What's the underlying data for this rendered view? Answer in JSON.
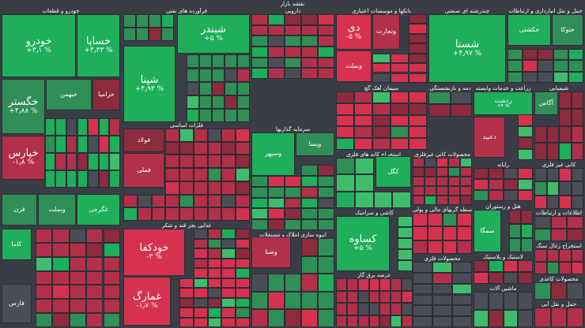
{
  "title": "نقشه بازار",
  "colors": {
    "background": "#3a3d45",
    "strong_green": "#1fae5a",
    "green": "#2f8f56",
    "light_green": "#3fbd6c",
    "neutral": "#4a4d55",
    "red": "#b2304a",
    "strong_red": "#d6324f",
    "dark_red": "#8c2a3e"
  },
  "sectors": [
    {
      "label": "خودرو و قطعات"
    },
    {
      "label": "فرآورده های نفتی"
    },
    {
      "label": "دارویی"
    },
    {
      "label": "بانکها و موسسات اعتباری"
    },
    {
      "label": "چندرشته ای صنعتی"
    },
    {
      "label": "حمل و نقل انبارداری و ارتباطات"
    },
    {
      "label": "فلزات اساسی"
    },
    {
      "label": "سیمان آهک گچ"
    },
    {
      "label": "دمه و بازنشستگی"
    },
    {
      "label": "زراعت و خدمات وابسته"
    },
    {
      "label": "شیمیایی"
    },
    {
      "label": "سرمایه گذاریها"
    },
    {
      "label": "استخراج کانه های فلزی"
    },
    {
      "label": "محصولات کانی غیرفلزی"
    },
    {
      "label": "کانی غیر فلزی"
    },
    {
      "label": "رایانه"
    },
    {
      "label": "عرضه برق گاز"
    },
    {
      "label": "کاشی و سرامیک"
    },
    {
      "label": "واسطه گریهای مالی و پولی"
    },
    {
      "label": "هتل و رستوران"
    },
    {
      "label": "اطلاعات و ارتباطات"
    },
    {
      "label": "غذایی بجز قند و شکر"
    },
    {
      "label": "انبوه سازی املاک و مستغلات"
    },
    {
      "label": "محصولات فلزی"
    },
    {
      "label": "لاستیک و پلاستیک"
    },
    {
      "label": "استخراج زغال سنگ"
    },
    {
      "label": "ماشین آلات"
    },
    {
      "label": "محصولات کاغذی"
    },
    {
      "label": "حمل و نقل آبی"
    }
  ],
  "tiles": [
    {
      "label": "خودرو",
      "value": "+۳٫۱ %"
    },
    {
      "label": "خساپا",
      "value": "+۴٫۳۳ %"
    },
    {
      "label": "شبندر",
      "value": "+۵ %"
    },
    {
      "label": "شپنا",
      "value": "+۴٫۹۳ %"
    },
    {
      "label": "دی",
      "value": "-۵ %"
    },
    {
      "label": "وتجارت",
      "value": ""
    },
    {
      "label": "وبملت",
      "value": ""
    },
    {
      "label": "شستا",
      "value": "+۴٫۹۷ %"
    },
    {
      "label": "حکشتی",
      "value": ""
    },
    {
      "label": "حتوکا",
      "value": ""
    },
    {
      "label": "خگستر",
      "value": "+۴٫۸۸ %"
    },
    {
      "label": "خبهمن",
      "value": ""
    },
    {
      "label": "خزامیا",
      "value": ""
    },
    {
      "label": "خپارس",
      "value": "-۱٫۸ %"
    },
    {
      "label": "فولاد",
      "value": ""
    },
    {
      "label": "فملی",
      "value": ""
    },
    {
      "label": "کگل",
      "value": ""
    },
    {
      "label": "وسپهر",
      "value": ""
    },
    {
      "label": "ویسا",
      "value": ""
    },
    {
      "label": "کساوه",
      "value": "+۵ %"
    },
    {
      "label": "سمگا",
      "value": ""
    },
    {
      "label": "خودکفا",
      "value": "-۳ %"
    },
    {
      "label": "غمارگ",
      "value": "-۱٫۷ %"
    },
    {
      "label": "قرن",
      "value": ""
    },
    {
      "label": "غگرجی",
      "value": ""
    },
    {
      "label": "وبملت",
      "value": ""
    },
    {
      "label": "وصنا",
      "value": ""
    },
    {
      "label": "فارس",
      "value": ""
    },
    {
      "label": "کاما",
      "value": ""
    },
    {
      "label": "زدشت",
      "value": "+۴ %"
    },
    {
      "label": "آگاس",
      "value": ""
    },
    {
      "label": "دعبید",
      "value": ""
    }
  ]
}
